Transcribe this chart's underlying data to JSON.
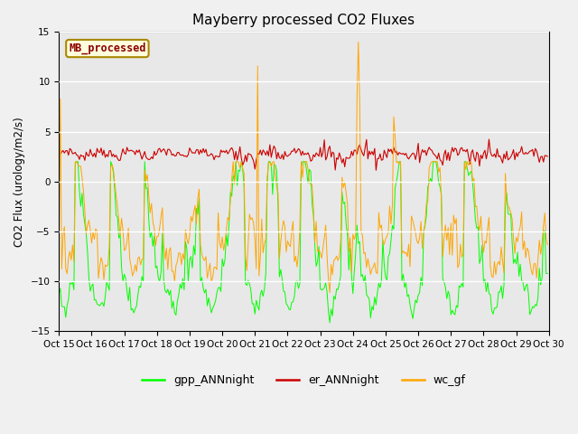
{
  "title": "Mayberry processed CO2 Fluxes",
  "ylabel": "CO2 Flux (urology/m2/s)",
  "xlim": [
    0,
    359
  ],
  "ylim": [
    -15,
    15
  ],
  "yticks": [
    -15,
    -10,
    -5,
    0,
    5,
    10,
    15
  ],
  "xtick_labels": [
    "Oct 15",
    "Oct 16",
    "Oct 17",
    "Oct 18",
    "Oct 19",
    "Oct 20",
    "Oct 21",
    "Oct 22",
    "Oct 23",
    "Oct 24",
    "Oct 25",
    "Oct 26",
    "Oct 27",
    "Oct 28",
    "Oct 29",
    "Oct 30"
  ],
  "legend_entries": [
    "gpp_ANNnight",
    "er_ANNnight",
    "wc_gf"
  ],
  "legend_colors": [
    "#00ff00",
    "#cc0000",
    "#ffa500"
  ],
  "text_label": "MB_processed",
  "text_label_color": "#8b0000",
  "text_label_bg": "#ffffdd",
  "plot_bg": "#e8e8e8",
  "fig_bg": "#f0f0f0",
  "n_points": 360,
  "pts_per_day": 24,
  "n_days": 15,
  "seed": 7
}
